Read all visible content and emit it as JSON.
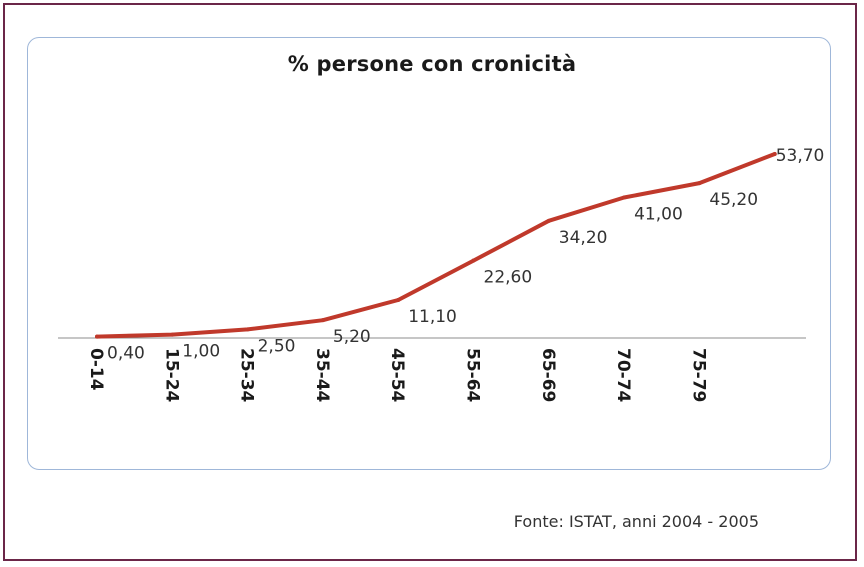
{
  "chart_data": {
    "type": "line",
    "title": "% persone con cronicità",
    "categories": [
      "0-14",
      "15-24",
      "25-34",
      "35-44",
      "45-54",
      "55-64",
      "65-69",
      "70-74",
      "75-79",
      ""
    ],
    "series": [
      {
        "values": [
          0.4,
          1.0,
          2.5,
          5.2,
          11.1,
          22.6,
          34.2,
          41.0,
          45.2,
          53.7
        ],
        "labels": [
          "0,40",
          "1,00",
          "2,50",
          "5,20",
          "11,10",
          "22,60",
          "34,20",
          "41,00",
          "45,20",
          "53,70"
        ]
      }
    ],
    "line_color": "#c0392b",
    "ylim": [
      0,
      60
    ],
    "grid": false,
    "legend": "none"
  },
  "source": "Fonte: ISTAT, anni 2004 - 2005"
}
